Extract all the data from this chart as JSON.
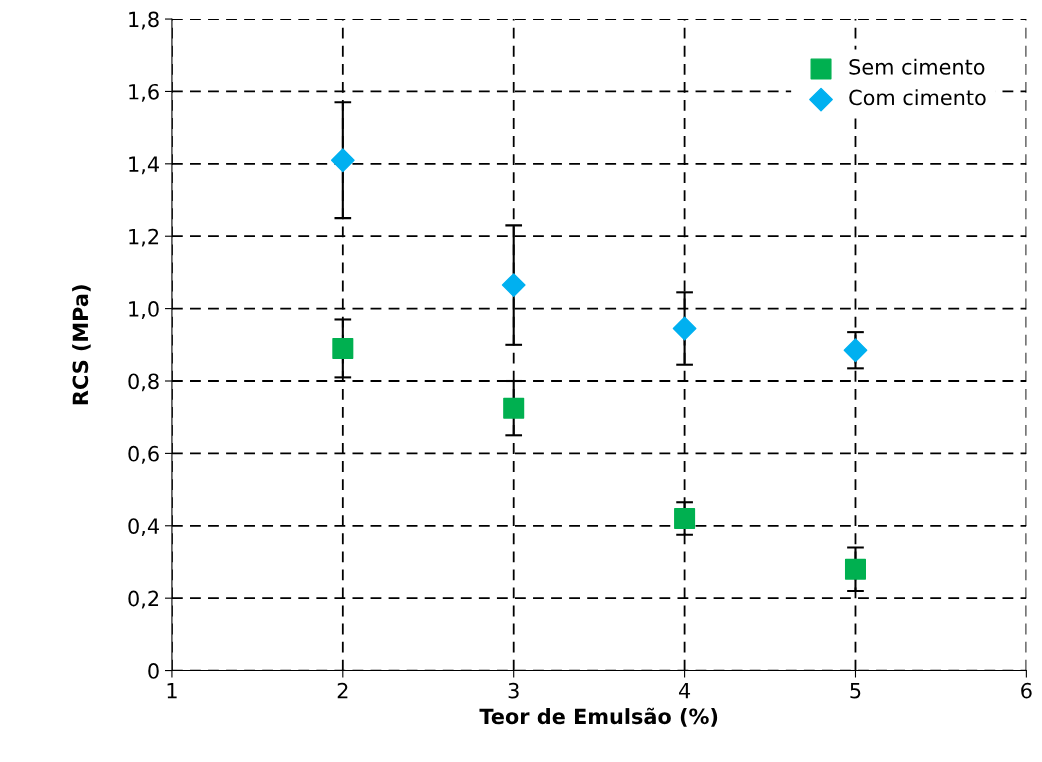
{
  "chart_data": {
    "type": "scatter",
    "xlabel": "Teor de Emulsão (%)",
    "ylabel": "RCS (MPa)",
    "x": [
      2,
      3,
      4,
      5
    ],
    "series": [
      {
        "name": "Sem cimento",
        "color": "#00b050",
        "marker": "square",
        "values": [
          0.89,
          0.725,
          0.42,
          0.28
        ],
        "errors": [
          0.08,
          0.075,
          0.045,
          0.06
        ]
      },
      {
        "name": "Com cimento",
        "color": "#00b0f0",
        "marker": "diamond",
        "values": [
          1.41,
          1.065,
          0.945,
          0.885
        ],
        "errors": [
          0.16,
          0.165,
          0.1,
          0.05
        ]
      }
    ],
    "xlim": [
      1,
      6
    ],
    "xticks": [
      1,
      2,
      3,
      4,
      5,
      6
    ],
    "ylim": [
      0,
      1.8
    ],
    "yticks": [
      {
        "value": 0,
        "label": "0"
      },
      {
        "value": 0.2,
        "label": "0,2"
      },
      {
        "value": 0.4,
        "label": "0,4"
      },
      {
        "value": 0.6,
        "label": "0,6"
      },
      {
        "value": 0.8,
        "label": "0,8"
      },
      {
        "value": 1.0,
        "label": "1,0"
      },
      {
        "value": 1.2,
        "label": "1,2"
      },
      {
        "value": 1.4,
        "label": "1,4"
      },
      {
        "value": 1.6,
        "label": "1,6"
      },
      {
        "value": 1.8,
        "label": "1,8"
      }
    ],
    "grid": true,
    "legend": "top right"
  }
}
